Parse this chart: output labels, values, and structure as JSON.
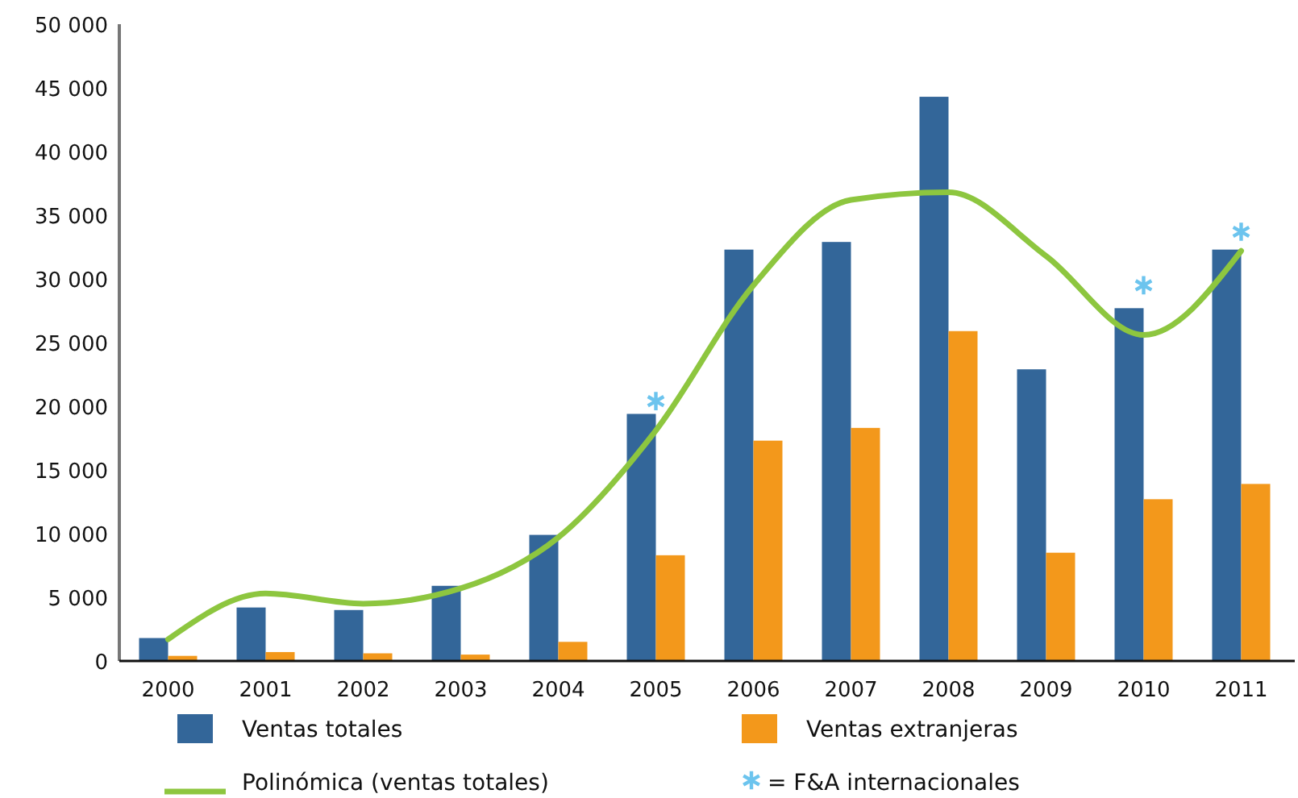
{
  "chart_data": {
    "type": "bar",
    "categories": [
      "2000",
      "2001",
      "2002",
      "2003",
      "2004",
      "2005",
      "2006",
      "2007",
      "2008",
      "2009",
      "2010",
      "2011"
    ],
    "series": [
      {
        "name": "Ventas totales",
        "color": "#336699",
        "values": [
          1800,
          4200,
          4000,
          5900,
          9900,
          19400,
          32300,
          32900,
          44300,
          22900,
          27700,
          32300
        ]
      },
      {
        "name": "Ventas extranjeras",
        "color": "#f3981b",
        "values": [
          400,
          700,
          600,
          500,
          1500,
          8300,
          17300,
          18300,
          25900,
          8500,
          12700,
          13900
        ]
      },
      {
        "name": "Polinómica (ventas totales)",
        "type": "line",
        "color": "#8dc63f",
        "line_style": "solid",
        "marker": "none",
        "values": [
          1700,
          5300,
          4500,
          5700,
          9700,
          18100,
          29500,
          36200,
          36800,
          31800,
          25600,
          32200
        ]
      },
      {
        "name": "= F&A internacionales",
        "type": "scatter",
        "marker": "cross",
        "color": "#6cc4ee",
        "values": [
          null,
          null,
          null,
          null,
          null,
          20400,
          null,
          null,
          null,
          null,
          29500,
          33700
        ]
      }
    ],
    "ylim": [
      0,
      50000
    ],
    "yticks": [
      {
        "value": 0,
        "label": "0"
      },
      {
        "value": 5000,
        "label": "5 000"
      },
      {
        "value": 10000,
        "label": "10 000"
      },
      {
        "value": 15000,
        "label": "15 000"
      },
      {
        "value": 20000,
        "label": "20 000"
      },
      {
        "value": 25000,
        "label": "25 000"
      },
      {
        "value": 30000,
        "label": "30 000"
      },
      {
        "value": 35000,
        "label": "35 000"
      },
      {
        "value": 40000,
        "label": "40 000"
      },
      {
        "value": 45000,
        "label": "45 000"
      },
      {
        "value": 50000,
        "label": "50 000"
      }
    ],
    "grid": false,
    "legend": "bottom"
  }
}
